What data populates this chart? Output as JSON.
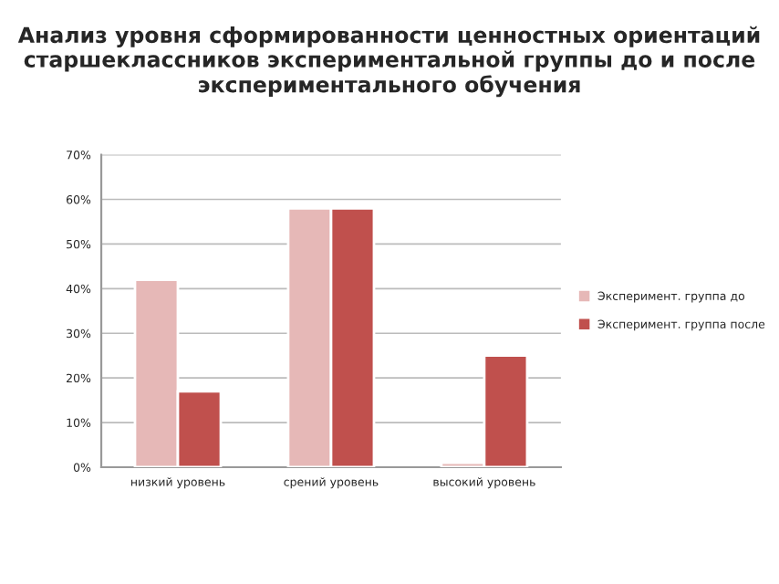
{
  "chart_data": {
    "type": "bar",
    "title": "Анализ уровня сформированности ценностных ориентаций старшеклассников экспериментальной группы до и после экспериментального обучения",
    "categories": [
      "низкий уровень",
      "срений уровень",
      "высокий уровень"
    ],
    "series": [
      {
        "name": "Эксперимент. группа до",
        "color": "#e6b8b7",
        "values": [
          42,
          58,
          1
        ]
      },
      {
        "name": "Эксперимент. группа после",
        "color": "#c0504d",
        "values": [
          17,
          58,
          25
        ]
      }
    ],
    "ylim": [
      0,
      70
    ],
    "yticks": [
      {
        "value": 0,
        "label": "0%"
      },
      {
        "value": 10,
        "label": "10%"
      },
      {
        "value": 20,
        "label": "20%"
      },
      {
        "value": 30,
        "label": "30%"
      },
      {
        "value": 40,
        "label": "40%"
      },
      {
        "value": 50,
        "label": "50%"
      },
      {
        "value": 60,
        "label": "60%"
      },
      {
        "value": 70,
        "label": "70%"
      }
    ],
    "grid": "y",
    "legend": "right"
  }
}
